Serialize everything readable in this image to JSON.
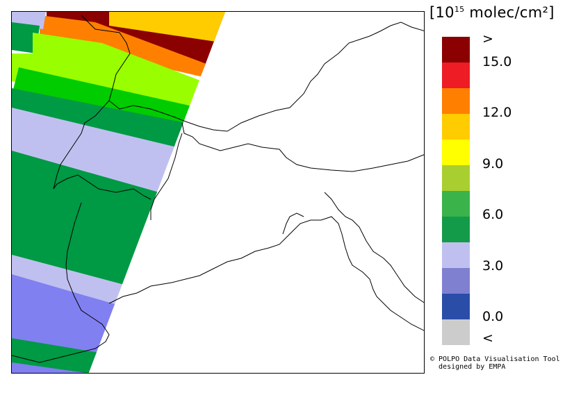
{
  "legend": {
    "title_prefix": "[10",
    "title_exp": "15",
    "title_suffix": " molec/cm²]",
    "colors": [
      "#8b0000",
      "#ee1c24",
      "#ff7f00",
      "#ffcc00",
      "#ffff00",
      "#a8cf2f",
      "#3ab34a",
      "#139b4a",
      "#c0c0f0",
      "#8080d0",
      "#2a4da8",
      "#cccccc"
    ],
    "labels": [
      ">",
      "15.0",
      "12.0",
      "9.0",
      "6.0",
      "3.0",
      "0.0",
      "<"
    ]
  },
  "credit": {
    "line1": "© POLPO Data Visualisation Tool",
    "line2": "  designed by EMPA"
  },
  "colors": {
    "dark_red": "#8b0000",
    "orange": "#ff8000",
    "yellow": "#ffcc00",
    "lime": "#99ff00",
    "bright_green": "#00cc00",
    "green": "#009944",
    "lavender": "#c0c0f0",
    "periwinkle": "#8080f0"
  }
}
